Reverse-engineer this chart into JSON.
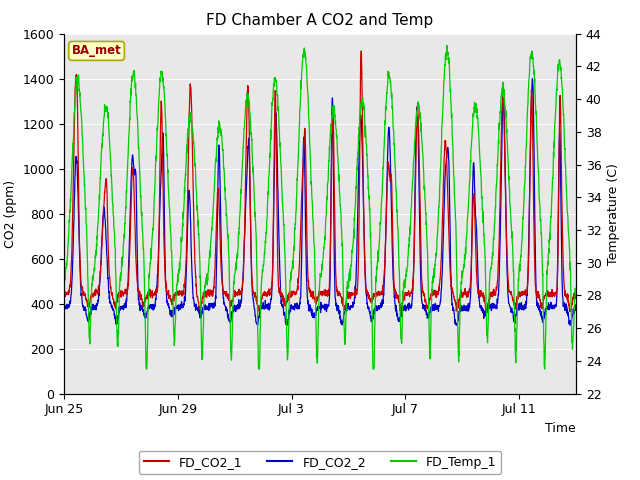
{
  "title": "FD Chamber A CO2 and Temp",
  "xlabel": "Time",
  "ylabel_left": "CO2 (ppm)",
  "ylabel_right": "Temperature (C)",
  "legend_label": "BA_met",
  "series": [
    "FD_CO2_1",
    "FD_CO2_2",
    "FD_Temp_1"
  ],
  "colors": [
    "#cc0000",
    "#0000cc",
    "#00cc00"
  ],
  "co2_ylim": [
    0,
    1600
  ],
  "temp_ylim": [
    22,
    44
  ],
  "co2_yticks": [
    0,
    200,
    400,
    600,
    800,
    1000,
    1200,
    1400,
    1600
  ],
  "temp_yticks": [
    22,
    24,
    26,
    28,
    30,
    32,
    34,
    36,
    38,
    40,
    42,
    44
  ],
  "x_tick_labels": [
    "Jun 25",
    "Jun 29",
    "Jul 3",
    "Jul 7",
    "Jul 11"
  ],
  "x_tick_positions": [
    0,
    4,
    8,
    12,
    16
  ],
  "x_lim": [
    0,
    18
  ],
  "n_days": 18,
  "n_pts": 2160,
  "fig_bg_color": "#ffffff",
  "plot_bg_color": "#e8e8e8",
  "title_fontsize": 11,
  "axis_label_fontsize": 9,
  "tick_fontsize": 9,
  "legend_box_facecolor": "#ffffcc",
  "legend_box_edgecolor": "#aaaa00",
  "legend_label_color": "#990000",
  "grid_color": "#ffffff",
  "line_width": 0.9
}
